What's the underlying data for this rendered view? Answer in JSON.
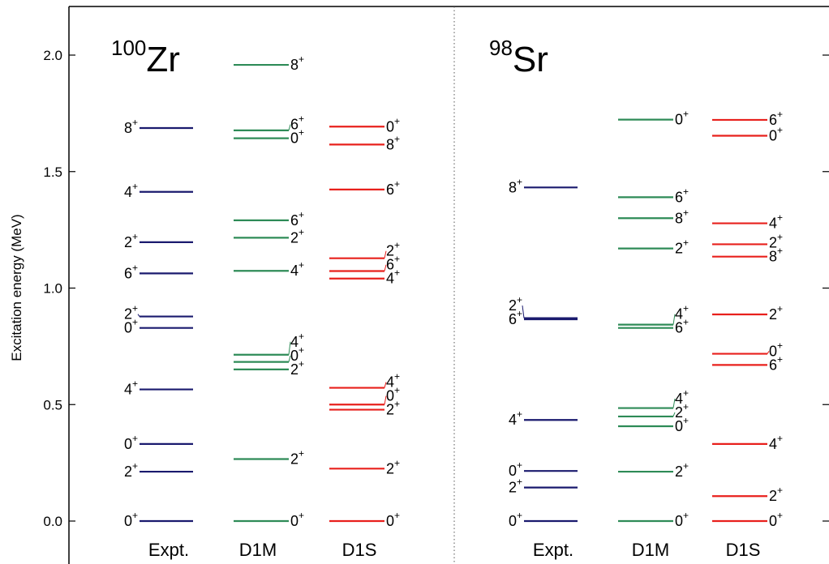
{
  "chart_data": {
    "type": "level-scheme",
    "ylabel": "Excitation energy (MeV)",
    "ylim": [
      -0.08,
      2.2
    ],
    "yticks": [
      {
        "value": 0.0,
        "label": "0.0"
      },
      {
        "value": 0.5,
        "label": "0.5"
      },
      {
        "value": 1.0,
        "label": "1.0"
      },
      {
        "value": 1.5,
        "label": "1.5"
      },
      {
        "value": 2.0,
        "label": "2.0"
      }
    ],
    "panels": [
      {
        "mass": "100",
        "symbol": "Zr",
        "columns": [
          {
            "name": "Expt.",
            "color": "#1a1a6e",
            "levels": [
              {
                "e": 0.0,
                "label": "0+"
              },
              {
                "e": 0.212,
                "label": "2+"
              },
              {
                "e": 0.331,
                "label": "0+"
              },
              {
                "e": 0.565,
                "label": "4+"
              },
              {
                "e": 0.829,
                "label": "0+"
              },
              {
                "e": 0.878,
                "label": "2+"
              },
              {
                "e": 1.063,
                "label": "6+"
              },
              {
                "e": 1.197,
                "label": "2+"
              },
              {
                "e": 1.413,
                "label": "4+"
              },
              {
                "e": 1.687,
                "label": "8+"
              }
            ]
          },
          {
            "name": "D1M",
            "color": "#2e8b57",
            "levels": [
              {
                "e": 0.0,
                "label": "0+"
              },
              {
                "e": 0.266,
                "label": "2+"
              },
              {
                "e": 0.651,
                "label": "2+"
              },
              {
                "e": 0.683,
                "label": "0+"
              },
              {
                "e": 0.714,
                "label": "4+"
              },
              {
                "e": 1.074,
                "label": "4+"
              },
              {
                "e": 1.216,
                "label": "2+"
              },
              {
                "e": 1.291,
                "label": "6+"
              },
              {
                "e": 1.643,
                "label": "0+"
              },
              {
                "e": 1.677,
                "label": "6+"
              },
              {
                "e": 1.958,
                "label": "8+"
              }
            ]
          },
          {
            "name": "D1S",
            "color": "#e8201c",
            "levels": [
              {
                "e": 0.0,
                "label": "0+"
              },
              {
                "e": 0.225,
                "label": "2+"
              },
              {
                "e": 0.478,
                "label": "2+"
              },
              {
                "e": 0.5,
                "label": "0+"
              },
              {
                "e": 0.572,
                "label": "4+"
              },
              {
                "e": 1.041,
                "label": "4+"
              },
              {
                "e": 1.073,
                "label": "6+"
              },
              {
                "e": 1.128,
                "label": "2+"
              },
              {
                "e": 1.423,
                "label": "6+"
              },
              {
                "e": 1.616,
                "label": "8+"
              },
              {
                "e": 1.693,
                "label": "0+"
              }
            ]
          }
        ]
      },
      {
        "mass": "98",
        "symbol": "Sr",
        "columns": [
          {
            "name": "Expt.",
            "color": "#1a1a6e",
            "levels": [
              {
                "e": 0.0,
                "label": "0+"
              },
              {
                "e": 0.144,
                "label": "2+"
              },
              {
                "e": 0.215,
                "label": "0+"
              },
              {
                "e": 0.434,
                "label": "4+"
              },
              {
                "e": 0.866,
                "label": "6+"
              },
              {
                "e": 0.871,
                "label": "2+"
              },
              {
                "e": 1.432,
                "label": "8+"
              }
            ]
          },
          {
            "name": "D1M",
            "color": "#2e8b57",
            "levels": [
              {
                "e": 0.0,
                "label": "0+"
              },
              {
                "e": 0.212,
                "label": "2+"
              },
              {
                "e": 0.407,
                "label": "0+"
              },
              {
                "e": 0.449,
                "label": "2+"
              },
              {
                "e": 0.485,
                "label": "4+"
              },
              {
                "e": 0.829,
                "label": "6+"
              },
              {
                "e": 0.843,
                "label": "4+"
              },
              {
                "e": 1.17,
                "label": "2+"
              },
              {
                "e": 1.3,
                "label": "8+"
              },
              {
                "e": 1.39,
                "label": "6+"
              },
              {
                "e": 1.723,
                "label": "0+"
              }
            ]
          },
          {
            "name": "D1S",
            "color": "#e8201c",
            "levels": [
              {
                "e": 0.0,
                "label": "0+"
              },
              {
                "e": 0.107,
                "label": "2+"
              },
              {
                "e": 0.331,
                "label": "4+"
              },
              {
                "e": 0.67,
                "label": "6+"
              },
              {
                "e": 0.718,
                "label": "0+"
              },
              {
                "e": 0.887,
                "label": "2+"
              },
              {
                "e": 1.135,
                "label": "8+"
              },
              {
                "e": 1.188,
                "label": "2+"
              },
              {
                "e": 1.278,
                "label": "4+"
              },
              {
                "e": 1.654,
                "label": "0+"
              },
              {
                "e": 1.722,
                "label": "6+"
              }
            ]
          }
        ]
      }
    ]
  }
}
